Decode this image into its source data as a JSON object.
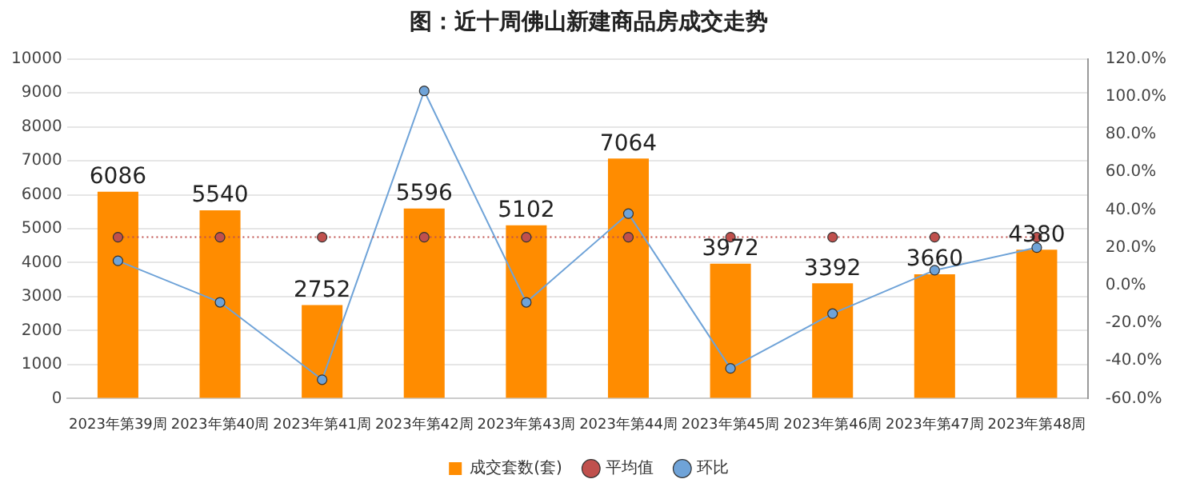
{
  "chart_data": {
    "type": "bar",
    "title": "图：近十周佛山新建商品房成交走势",
    "categories": [
      "2023年第39周",
      "2023年第40周",
      "2023年第41周",
      "2023年第42周",
      "2023年第43周",
      "2023年第44周",
      "2023年第45周",
      "2023年第46周",
      "2023年第47周",
      "2023年第48周"
    ],
    "series": [
      {
        "name": "成交套数(套)",
        "color": "#ff8c00",
        "values": [
          6086,
          5540,
          2752,
          5596,
          5102,
          7064,
          3972,
          3392,
          3660,
          4380
        ],
        "value_labels": [
          "6086",
          "5540",
          "2752",
          "5596",
          "5102",
          "7064",
          "3972",
          "3392",
          "3660",
          "4380"
        ]
      },
      {
        "name": "平均值",
        "type": "line",
        "color": "#c0504d",
        "line_style": "dotted",
        "values": [
          4750,
          4750,
          4750,
          4750,
          4750,
          4750,
          4750,
          4750,
          4750,
          4750
        ]
      },
      {
        "name": "环比",
        "type": "line",
        "axis": "y2",
        "color": "#6fa3d8",
        "line_style": "solid",
        "values": [
          13,
          -9,
          -50,
          103,
          -9,
          38,
          -44,
          -15,
          8,
          20
        ]
      }
    ],
    "ylim": [
      0,
      10000
    ],
    "yticks": [
      0,
      1000,
      2000,
      3000,
      4000,
      5000,
      6000,
      7000,
      8000,
      9000,
      10000
    ],
    "y2lim": [
      -60,
      120
    ],
    "y2ticks": [
      {
        "value": -60,
        "label": "-60.0%"
      },
      {
        "value": -40,
        "label": "-40.0%"
      },
      {
        "value": -20,
        "label": "-20.0%"
      },
      {
        "value": 0,
        "label": "0.0%"
      },
      {
        "value": 20,
        "label": "20.0%"
      },
      {
        "value": 40,
        "label": "40.0%"
      },
      {
        "value": 60,
        "label": "60.0%"
      },
      {
        "value": 80,
        "label": "80.0%"
      },
      {
        "value": 100,
        "label": "100.0%"
      },
      {
        "value": 120,
        "label": "120.0%"
      }
    ],
    "grid": "y",
    "legend": "bottom",
    "marker": "circle"
  }
}
